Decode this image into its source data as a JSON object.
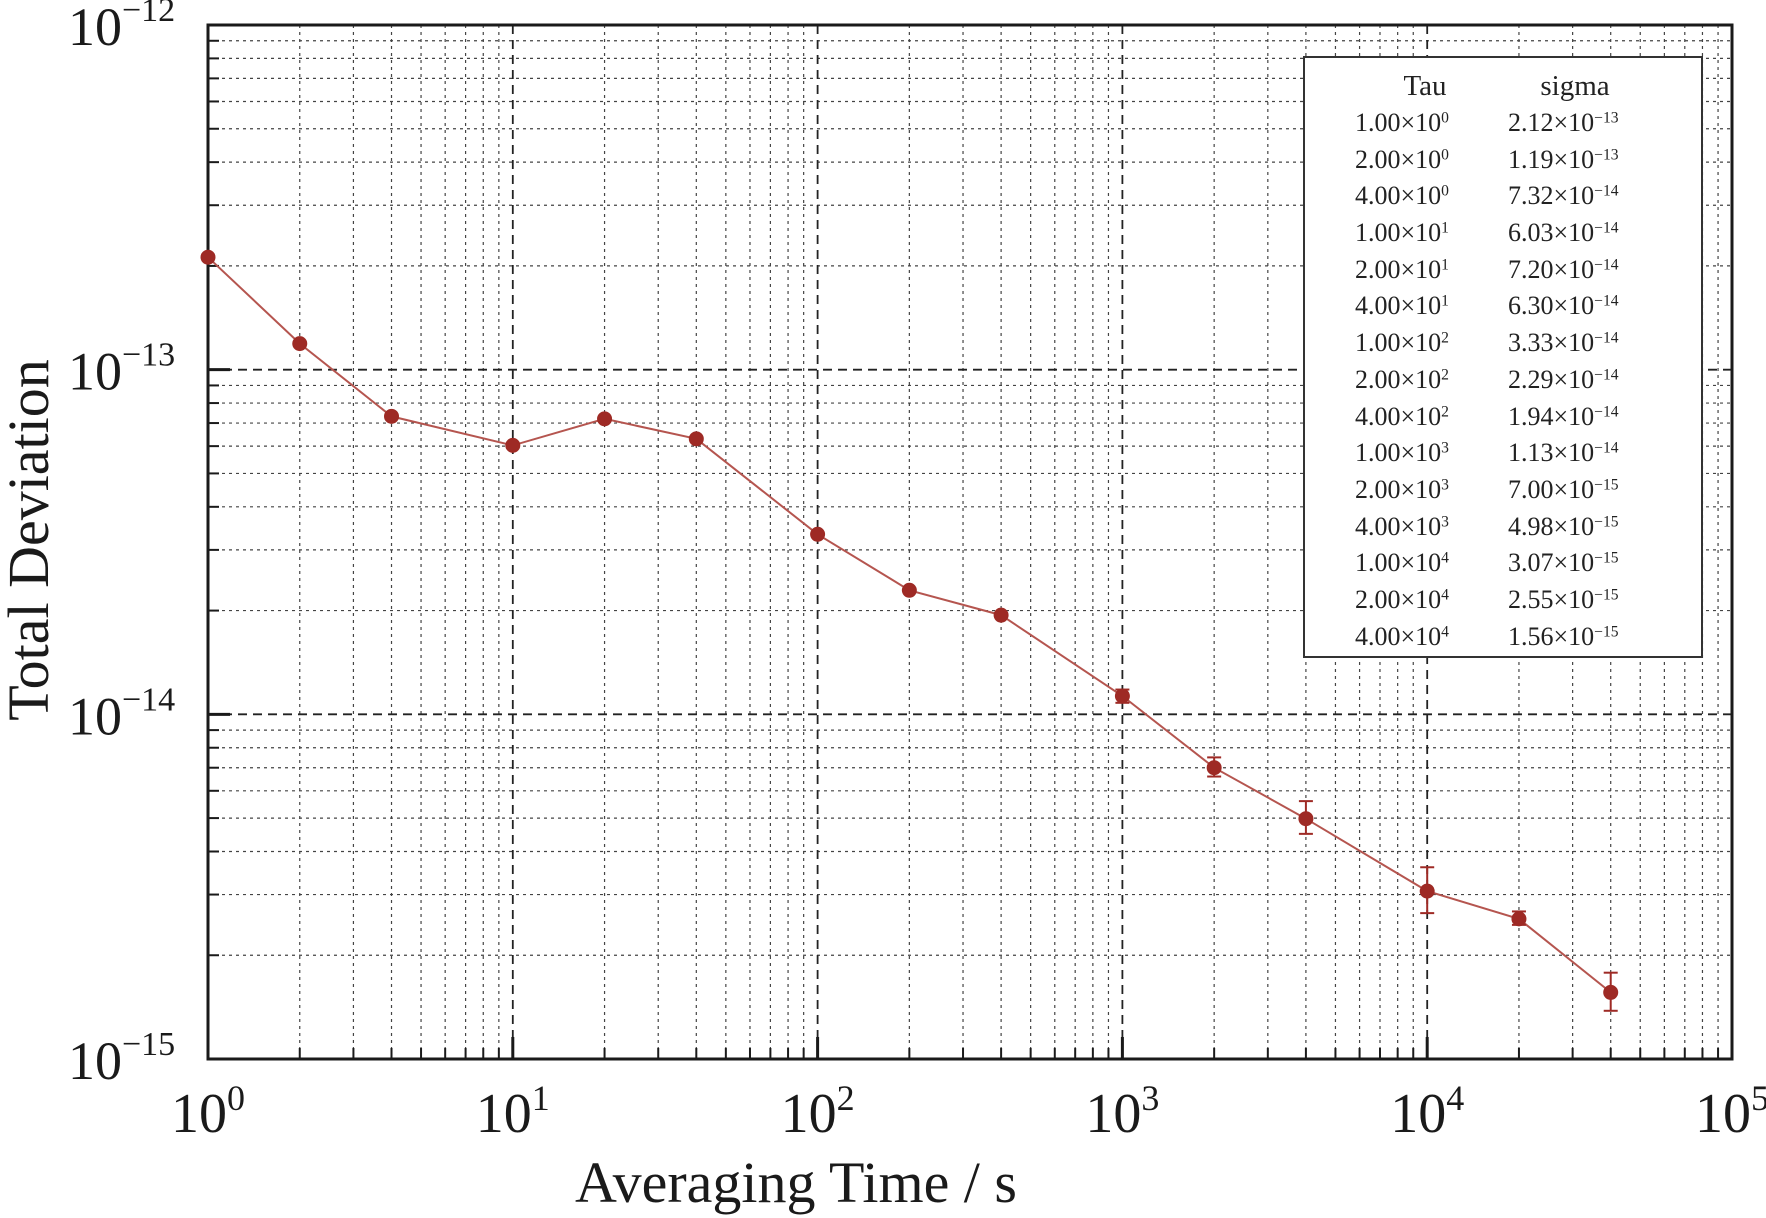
{
  "chart_data": {
    "type": "scatter",
    "xlabel": "Averaging Time / s",
    "ylabel": "Total Deviation",
    "xscale": "log",
    "yscale": "log",
    "xlim": [
      1,
      100000
    ],
    "ylim": [
      1e-15,
      1e-12
    ],
    "grid": true,
    "x_tick_labels": [
      {
        "base": "10",
        "exp": "0"
      },
      {
        "base": "10",
        "exp": "1"
      },
      {
        "base": "10",
        "exp": "2"
      },
      {
        "base": "10",
        "exp": "3"
      },
      {
        "base": "10",
        "exp": "4"
      },
      {
        "base": "10",
        "exp": "5"
      }
    ],
    "y_tick_labels": [
      {
        "base": "10",
        "exp": "−15"
      },
      {
        "base": "10",
        "exp": "−14"
      },
      {
        "base": "10",
        "exp": "−13"
      },
      {
        "base": "10",
        "exp": "−12"
      }
    ],
    "marker_color": "#9e2a25",
    "line_color": "#b5554f",
    "series": [
      {
        "x": [
          1,
          2,
          4,
          10,
          20,
          40,
          100,
          200,
          400,
          1000,
          2000,
          4000,
          10000,
          20000,
          40000
        ],
        "y": [
          2.12e-13,
          1.19e-13,
          7.32e-14,
          6.03e-14,
          7.2e-14,
          6.3e-14,
          3.33e-14,
          2.29e-14,
          1.94e-14,
          1.13e-14,
          7e-15,
          4.98e-15,
          3.07e-15,
          2.55e-15,
          1.56e-15
        ],
        "error_bars": [
          {
            "x": 1000,
            "low": 1.08e-14,
            "high": 1.18e-14
          },
          {
            "x": 2000,
            "low": 6.6e-15,
            "high": 7.5e-15
          },
          {
            "x": 4000,
            "low": 4.5e-15,
            "high": 5.6e-15
          },
          {
            "x": 10000,
            "low": 2.65e-15,
            "high": 3.6e-15
          },
          {
            "x": 20000,
            "low": 2.45e-15,
            "high": 2.68e-15
          },
          {
            "x": 40000,
            "low": 1.38e-15,
            "high": 1.78e-15
          }
        ]
      }
    ],
    "legend": {
      "placement": "top-right",
      "header": {
        "tau": "Tau",
        "sigma": "sigma"
      },
      "rows": [
        {
          "tau": "1.00×10",
          "tau_exp": "0",
          "sigma": "2.12×10",
          "sigma_exp": "−13"
        },
        {
          "tau": "2.00×10",
          "tau_exp": "0",
          "sigma": "1.19×10",
          "sigma_exp": "−13"
        },
        {
          "tau": "4.00×10",
          "tau_exp": "0",
          "sigma": "7.32×10",
          "sigma_exp": "−14"
        },
        {
          "tau": "1.00×10",
          "tau_exp": "1",
          "sigma": "6.03×10",
          "sigma_exp": "−14"
        },
        {
          "tau": "2.00×10",
          "tau_exp": "1",
          "sigma": "7.20×10",
          "sigma_exp": "−14"
        },
        {
          "tau": "4.00×10",
          "tau_exp": "1",
          "sigma": "6.30×10",
          "sigma_exp": "−14"
        },
        {
          "tau": "1.00×10",
          "tau_exp": "2",
          "sigma": "3.33×10",
          "sigma_exp": "−14"
        },
        {
          "tau": "2.00×10",
          "tau_exp": "2",
          "sigma": "2.29×10",
          "sigma_exp": "−14"
        },
        {
          "tau": "4.00×10",
          "tau_exp": "2",
          "sigma": "1.94×10",
          "sigma_exp": "−14"
        },
        {
          "tau": "1.00×10",
          "tau_exp": "3",
          "sigma": "1.13×10",
          "sigma_exp": "−14"
        },
        {
          "tau": "2.00×10",
          "tau_exp": "3",
          "sigma": "7.00×10",
          "sigma_exp": "−15"
        },
        {
          "tau": "4.00×10",
          "tau_exp": "3",
          "sigma": "4.98×10",
          "sigma_exp": "−15"
        },
        {
          "tau": "1.00×10",
          "tau_exp": "4",
          "sigma": "3.07×10",
          "sigma_exp": "−15"
        },
        {
          "tau": "2.00×10",
          "tau_exp": "4",
          "sigma": "2.55×10",
          "sigma_exp": "−15"
        },
        {
          "tau": "4.00×10",
          "tau_exp": "4",
          "sigma": "1.56×10",
          "sigma_exp": "−15"
        }
      ]
    }
  }
}
